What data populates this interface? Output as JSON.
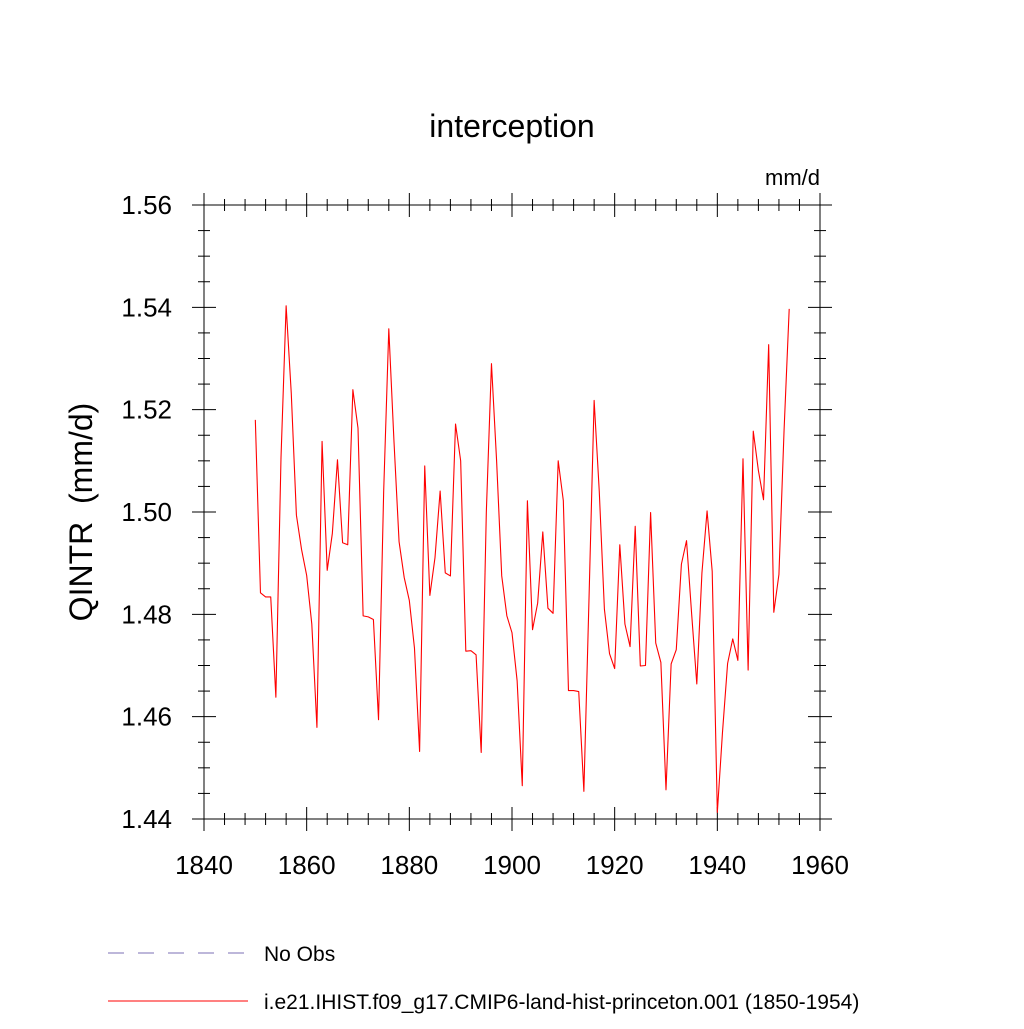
{
  "chart_data": {
    "type": "line",
    "title": "interception",
    "units_label": "mm/d",
    "ylabel": "QINTR  (mm/d)",
    "xlabel": "",
    "xlim": [
      1840,
      1960
    ],
    "ylim": [
      1.44,
      1.56
    ],
    "x_ticks": [
      1840,
      1860,
      1880,
      1900,
      1920,
      1940,
      1960
    ],
    "x_tick_labels": [
      "1840",
      "1860",
      "1880",
      "1900",
      "1920",
      "1940",
      "1960"
    ],
    "y_ticks": [
      1.44,
      1.46,
      1.48,
      1.5,
      1.52,
      1.54,
      1.56
    ],
    "y_tick_labels": [
      "1.44",
      "1.46",
      "1.48",
      "1.50",
      "1.52",
      "1.54",
      "1.56"
    ],
    "grid": false,
    "legend_position": "bottom-left",
    "legend": [
      {
        "label": "No Obs",
        "color": "#7b6fb5",
        "style": "dashed"
      },
      {
        "label": "i.e21.IHIST.f09_g17.CMIP6-land-hist-princeton.001 (1850-1954)",
        "color": "#ff0000",
        "style": "solid"
      }
    ],
    "series": [
      {
        "name": "i.e21.IHIST.f09_g17.CMIP6-land-hist-princeton.001 (1850-1954)",
        "color": "#ff0000",
        "x": [
          1850,
          1851,
          1852,
          1853,
          1854,
          1855,
          1856,
          1857,
          1858,
          1859,
          1860,
          1861,
          1862,
          1863,
          1864,
          1865,
          1866,
          1867,
          1868,
          1869,
          1870,
          1871,
          1872,
          1873,
          1874,
          1875,
          1876,
          1877,
          1878,
          1879,
          1880,
          1881,
          1882,
          1883,
          1884,
          1885,
          1886,
          1887,
          1888,
          1889,
          1890,
          1891,
          1892,
          1893,
          1894,
          1895,
          1896,
          1897,
          1898,
          1899,
          1900,
          1901,
          1902,
          1903,
          1904,
          1905,
          1906,
          1907,
          1908,
          1909,
          1910,
          1911,
          1912,
          1913,
          1914,
          1915,
          1916,
          1917,
          1918,
          1919,
          1920,
          1921,
          1922,
          1923,
          1924,
          1925,
          1926,
          1927,
          1928,
          1929,
          1930,
          1931,
          1932,
          1933,
          1934,
          1935,
          1936,
          1937,
          1938,
          1939,
          1940,
          1941,
          1942,
          1943,
          1944,
          1945,
          1946,
          1947,
          1948,
          1949,
          1950,
          1951,
          1952,
          1953,
          1954
        ],
        "values": [
          1.518,
          1.4842,
          1.4834,
          1.4834,
          1.4638,
          1.5106,
          1.5403,
          1.5232,
          1.4994,
          1.4927,
          1.4876,
          1.4781,
          1.4579,
          1.5138,
          1.4886,
          1.4958,
          1.5102,
          1.494,
          1.4936,
          1.5239,
          1.5164,
          1.4797,
          1.4795,
          1.479,
          1.4594,
          1.504,
          1.5358,
          1.514,
          1.4942,
          1.4872,
          1.4827,
          1.4734,
          1.4532,
          1.509,
          1.4837,
          1.4911,
          1.5041,
          1.4881,
          1.4875,
          1.5172,
          1.51,
          1.4728,
          1.4729,
          1.4721,
          1.453,
          1.5,
          1.529,
          1.51,
          1.4875,
          1.4797,
          1.4764,
          1.467,
          1.4465,
          1.5022,
          1.477,
          1.4822,
          1.4961,
          1.4812,
          1.4802,
          1.51,
          1.5022,
          1.4651,
          1.4651,
          1.4649,
          1.4454,
          1.483,
          1.5218,
          1.504,
          1.481,
          1.4723,
          1.4694,
          1.4936,
          1.4781,
          1.4737,
          1.4972,
          1.4699,
          1.47,
          1.4999,
          1.4744,
          1.4706,
          1.4457,
          1.4703,
          1.4731,
          1.4898,
          1.4944,
          1.48,
          1.4664,
          1.4881,
          1.5002,
          1.4884,
          1.4413,
          1.4569,
          1.4704,
          1.4752,
          1.471,
          1.5104,
          1.4691,
          1.5158,
          1.5081,
          1.5024,
          1.5327,
          1.4804,
          1.4878,
          1.516,
          1.5397
        ]
      }
    ]
  }
}
